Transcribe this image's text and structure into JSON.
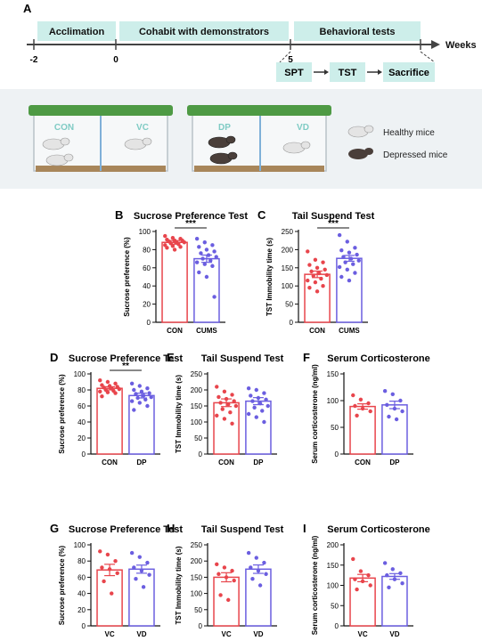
{
  "figure": {
    "timeline": {
      "panel": "A",
      "unit": "Weeks",
      "phases": [
        "Acclimation",
        "Cohabit with demonstrators",
        "Behavioral tests"
      ],
      "ticks": [
        "-2",
        "0",
        "5"
      ],
      "steps": [
        "SPT",
        "TST",
        "Sacrifice"
      ]
    },
    "scene": {
      "cage_labels": [
        "CON",
        "VC",
        "DP",
        "VD"
      ],
      "legend": [
        "Healthy mice",
        "Depressed mice"
      ]
    },
    "colors": {
      "group1": "#e8454c",
      "group2": "#6b5ee0",
      "accent": "#8fd1cc",
      "lid": "#4e9a44"
    }
  },
  "chart_data": [
    {
      "panel": "B",
      "type": "bar",
      "title": "Sucrose Preference Test",
      "ylabel": "Sucrose preference (%)",
      "categories": [
        "CON",
        "CUMS"
      ],
      "values": [
        88,
        70
      ],
      "sem": [
        2,
        4
      ],
      "ylim": [
        0,
        100
      ],
      "ticks": [
        "0",
        "20",
        "40",
        "60",
        "80",
        "100"
      ],
      "points": [
        [
          95,
          93,
          92,
          91,
          90,
          90,
          89,
          88,
          88,
          87,
          86,
          85,
          84,
          83,
          82,
          80
        ],
        [
          92,
          88,
          85,
          83,
          80,
          78,
          76,
          74,
          72,
          70,
          68,
          66,
          64,
          62,
          55,
          50,
          28
        ]
      ],
      "sig": "***"
    },
    {
      "panel": "C",
      "type": "bar",
      "title": "Tail Suspend Test",
      "ylabel": "TST Immobility time (s)",
      "categories": [
        "CON",
        "CUMS"
      ],
      "values": [
        132,
        176
      ],
      "sem": [
        9,
        8
      ],
      "ylim": [
        0,
        250
      ],
      "ticks": [
        "0",
        "50",
        "100",
        "150",
        "200",
        "250"
      ],
      "points": [
        [
          195,
          172,
          165,
          158,
          150,
          145,
          140,
          135,
          130,
          128,
          120,
          115,
          110,
          100,
          95,
          85
        ],
        [
          240,
          222,
          205,
          198,
          192,
          186,
          180,
          175,
          170,
          165,
          160,
          152,
          145,
          136,
          125,
          115
        ]
      ],
      "sig": "***"
    },
    {
      "panel": "D",
      "type": "bar",
      "title": "Sucrose Preference Test",
      "ylabel": "Sucrose preference (%)",
      "categories": [
        "CON",
        "DP"
      ],
      "values": [
        82,
        73
      ],
      "sem": [
        2,
        3
      ],
      "ylim": [
        0,
        100
      ],
      "ticks": [
        "0",
        "20",
        "40",
        "60",
        "80",
        "100"
      ],
      "points": [
        [
          92,
          90,
          88,
          86,
          85,
          84,
          83,
          82,
          81,
          80,
          79,
          78,
          77,
          76,
          72
        ],
        [
          88,
          85,
          82,
          80,
          78,
          76,
          75,
          73,
          71,
          70,
          68,
          66,
          64,
          60,
          55
        ]
      ],
      "sig": "**"
    },
    {
      "panel": "E",
      "type": "bar",
      "title": "Tail Suspend Test",
      "ylabel": "TST Immobility time (s)",
      "categories": [
        "CON",
        "DP"
      ],
      "values": [
        160,
        165
      ],
      "sem": [
        12,
        11
      ],
      "ylim": [
        0,
        250
      ],
      "ticks": [
        "0",
        "50",
        "100",
        "150",
        "200",
        "250"
      ],
      "points": [
        [
          210,
          195,
          185,
          178,
          172,
          165,
          160,
          155,
          150,
          140,
          130,
          120,
          110,
          95
        ],
        [
          205,
          200,
          190,
          182,
          175,
          170,
          165,
          158,
          150,
          145,
          135,
          125,
          115,
          100
        ]
      ],
      "sig": ""
    },
    {
      "panel": "F",
      "type": "bar",
      "title": "Serum Corticosterone",
      "ylabel": "Serum corticosterone (ng/ml)",
      "categories": [
        "CON",
        "DP"
      ],
      "values": [
        89,
        92
      ],
      "sem": [
        5,
        7
      ],
      "ylim": [
        0,
        150
      ],
      "ticks": [
        "0",
        "50",
        "100",
        "150"
      ],
      "points": [
        [
          110,
          102,
          95,
          90,
          85,
          80,
          72
        ],
        [
          118,
          112,
          100,
          92,
          85,
          80,
          70,
          65
        ]
      ],
      "sig": ""
    },
    {
      "panel": "G",
      "type": "bar",
      "title": "Sucrose Preference Test",
      "ylabel": "Sucrose preference (%)",
      "categories": [
        "VC",
        "VD"
      ],
      "values": [
        69,
        70
      ],
      "sem": [
        7,
        5
      ],
      "ylim": [
        0,
        100
      ],
      "ticks": [
        "0",
        "20",
        "40",
        "60",
        "80",
        "100"
      ],
      "points": [
        [
          92,
          88,
          80,
          72,
          70,
          65,
          55,
          40
        ],
        [
          90,
          85,
          78,
          72,
          68,
          63,
          58,
          48
        ]
      ],
      "sig": ""
    },
    {
      "panel": "H",
      "type": "bar",
      "title": "Tail Suspend Test",
      "ylabel": "TST Immobility time (s)",
      "categories": [
        "VC",
        "VD"
      ],
      "values": [
        150,
        175
      ],
      "sem": [
        14,
        13
      ],
      "ylim": [
        0,
        250
      ],
      "ticks": [
        "0",
        "50",
        "100",
        "150",
        "200",
        "250"
      ],
      "points": [
        [
          190,
          180,
          170,
          160,
          150,
          140,
          95,
          80
        ],
        [
          225,
          210,
          195,
          180,
          170,
          160,
          145,
          125
        ]
      ],
      "sig": ""
    },
    {
      "panel": "I",
      "type": "bar",
      "title": "Serum Corticosterone",
      "ylabel": "Serum corticosterone (ng/ml)",
      "categories": [
        "VC",
        "VD"
      ],
      "values": [
        118,
        122
      ],
      "sem": [
        9,
        7
      ],
      "ylim": [
        0,
        200
      ],
      "ticks": [
        "0",
        "50",
        "100",
        "150",
        "200"
      ],
      "points": [
        [
          165,
          135,
          125,
          115,
          110,
          100,
          90
        ],
        [
          155,
          140,
          130,
          125,
          115,
          105,
          95
        ]
      ],
      "sig": ""
    }
  ]
}
